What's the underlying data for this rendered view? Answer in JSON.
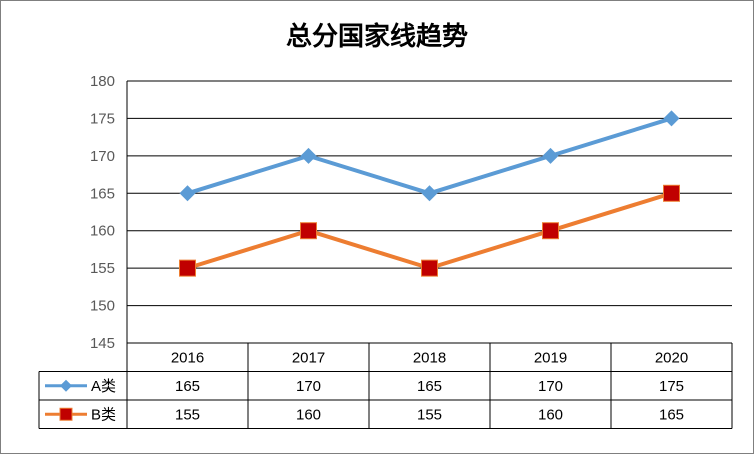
{
  "chart_data": {
    "type": "line",
    "title": "总分国家线趋势",
    "categories": [
      "2016",
      "2017",
      "2018",
      "2019",
      "2020"
    ],
    "ylim": [
      145,
      180
    ],
    "yticks": [
      145,
      150,
      155,
      160,
      165,
      170,
      175,
      180
    ],
    "grid": true,
    "legend": "data-table",
    "series": [
      {
        "name": "A类",
        "values": [
          165,
          170,
          165,
          170,
          175
        ],
        "color": "#5b9bd5",
        "marker": "diamond"
      },
      {
        "name": "B类",
        "values": [
          155,
          160,
          155,
          160,
          165
        ],
        "color": "#ed7d31",
        "marker": "square",
        "marker_color": "#c00000"
      }
    ]
  }
}
